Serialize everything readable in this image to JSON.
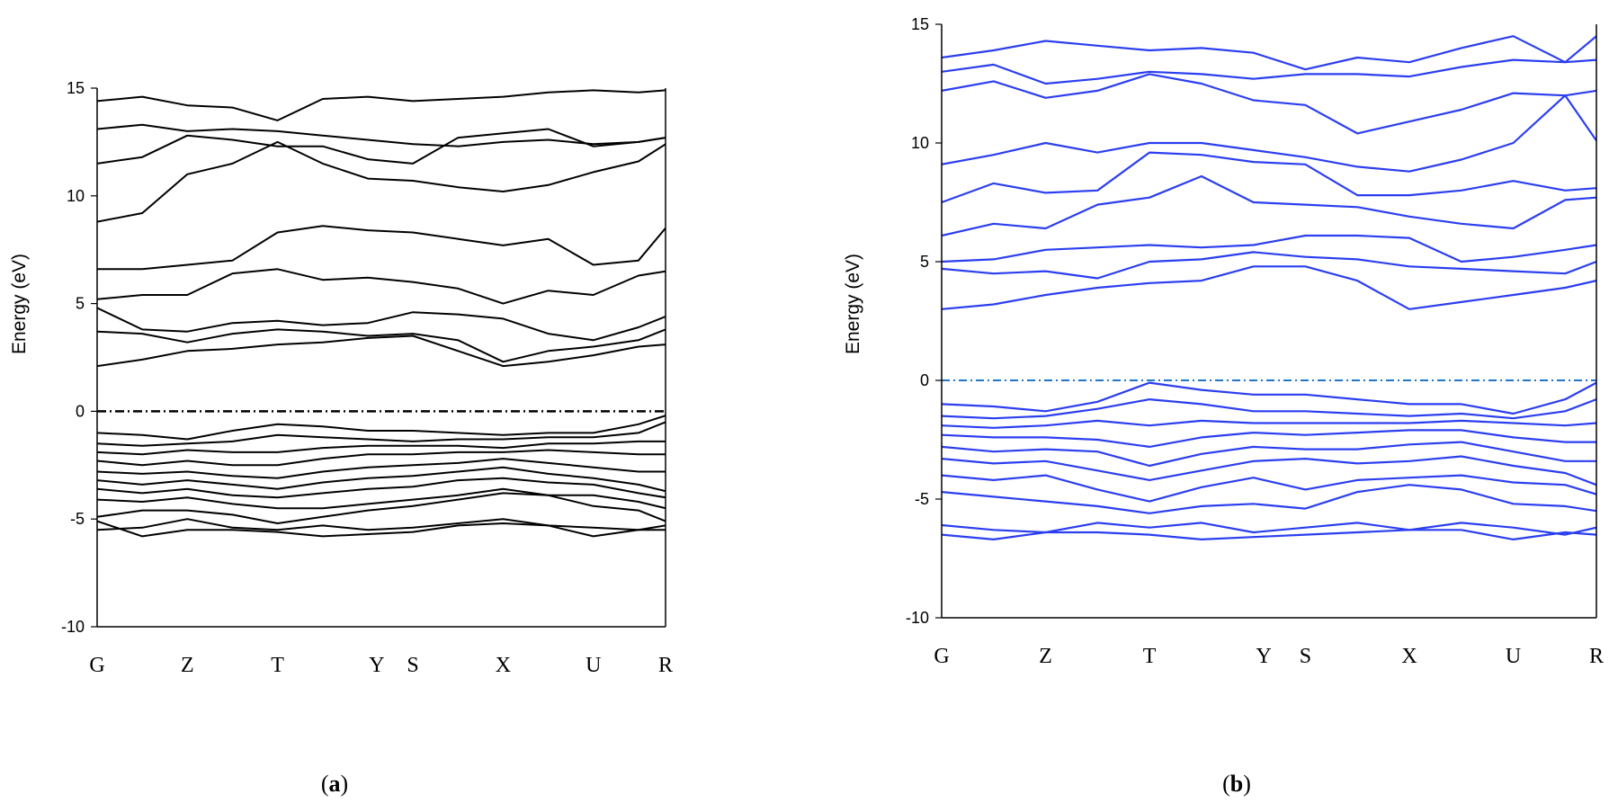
{
  "chart_data": [
    {
      "type": "line",
      "panel": "a",
      "caption_letter": "a",
      "title": "",
      "xlabel": "",
      "ylabel": "Energy (eV)",
      "ylim": [
        -10,
        15
      ],
      "yticks": [
        15,
        10,
        5,
        0,
        -5,
        -10
      ],
      "kpoints": [
        {
          "label": "G",
          "x": 0
        },
        {
          "label": "Z",
          "x": 1
        },
        {
          "label": "T",
          "x": 2
        },
        {
          "label": "Y",
          "x": 3.1
        },
        {
          "label": "S",
          "x": 3.5
        },
        {
          "label": "X",
          "x": 4.5
        },
        {
          "label": "U",
          "x": 5.5
        },
        {
          "label": "R",
          "x": 6.3
        }
      ],
      "x": [
        0,
        0.5,
        1,
        1.5,
        2,
        2.5,
        3,
        3.5,
        4,
        4.5,
        5,
        5.5,
        6,
        6.3
      ],
      "line_color": "#000000",
      "fermi_level": 0,
      "fermi_color": "#000000",
      "grid": false,
      "series": [
        {
          "values": [
            -5.1,
            -5.8,
            -5.5,
            -5.5,
            -5.6,
            -5.8,
            -5.7,
            -5.6,
            -5.3,
            -5.2,
            -5.3,
            -5.8,
            -5.5,
            -5.5
          ]
        },
        {
          "values": [
            -5.5,
            -5.4,
            -5.0,
            -5.4,
            -5.5,
            -5.3,
            -5.5,
            -5.4,
            -5.2,
            -5.0,
            -5.3,
            -5.4,
            -5.5,
            -5.3
          ]
        },
        {
          "values": [
            -4.9,
            -4.6,
            -4.6,
            -4.8,
            -5.2,
            -4.9,
            -4.6,
            -4.4,
            -4.1,
            -3.8,
            -3.9,
            -4.4,
            -4.6,
            -5.1
          ]
        },
        {
          "values": [
            -4.1,
            -4.2,
            -4.0,
            -4.3,
            -4.5,
            -4.5,
            -4.3,
            -4.1,
            -3.9,
            -3.6,
            -3.9,
            -3.9,
            -4.2,
            -4.5
          ]
        },
        {
          "values": [
            -3.6,
            -3.8,
            -3.6,
            -3.9,
            -4.0,
            -3.8,
            -3.6,
            -3.5,
            -3.2,
            -3.1,
            -3.3,
            -3.4,
            -3.8,
            -4.0
          ]
        },
        {
          "values": [
            -3.2,
            -3.4,
            -3.2,
            -3.4,
            -3.6,
            -3.3,
            -3.1,
            -3.0,
            -2.8,
            -2.6,
            -2.9,
            -3.1,
            -3.4,
            -3.7
          ]
        },
        {
          "values": [
            -2.8,
            -2.9,
            -2.8,
            -3.0,
            -3.1,
            -2.8,
            -2.6,
            -2.5,
            -2.4,
            -2.2,
            -2.4,
            -2.6,
            -2.8,
            -2.8
          ]
        },
        {
          "values": [
            -2.3,
            -2.5,
            -2.3,
            -2.5,
            -2.5,
            -2.2,
            -2.0,
            -2.0,
            -1.9,
            -1.9,
            -1.8,
            -1.9,
            -2.0,
            -2.0
          ]
        },
        {
          "values": [
            -1.9,
            -2.0,
            -1.8,
            -1.9,
            -1.9,
            -1.7,
            -1.6,
            -1.6,
            -1.6,
            -1.7,
            -1.5,
            -1.5,
            -1.4,
            -1.4
          ]
        },
        {
          "values": [
            -1.5,
            -1.6,
            -1.5,
            -1.4,
            -1.1,
            -1.2,
            -1.3,
            -1.4,
            -1.3,
            -1.3,
            -1.2,
            -1.2,
            -1.0,
            -0.5
          ]
        },
        {
          "values": [
            -1.0,
            -1.1,
            -1.3,
            -0.9,
            -0.6,
            -0.7,
            -0.9,
            -0.9,
            -1.0,
            -1.1,
            -1.0,
            -1.0,
            -0.6,
            -0.2
          ]
        }
      ],
      "conduction_series": [
        {
          "values": [
            2.1,
            2.4,
            2.8,
            2.9,
            3.1,
            3.2,
            3.4,
            3.5,
            2.8,
            2.1,
            2.3,
            2.6,
            3.0,
            3.1
          ]
        },
        {
          "values": [
            3.7,
            3.6,
            3.2,
            3.6,
            3.8,
            3.7,
            3.5,
            3.6,
            3.3,
            2.3,
            2.8,
            3.0,
            3.3,
            3.8
          ]
        },
        {
          "values": [
            4.8,
            3.8,
            3.7,
            4.1,
            4.2,
            4.0,
            4.1,
            4.6,
            4.5,
            4.3,
            3.6,
            3.3,
            3.9,
            4.4
          ]
        },
        {
          "values": [
            5.2,
            5.4,
            5.4,
            6.4,
            6.6,
            6.1,
            6.2,
            6.0,
            5.7,
            5.0,
            5.6,
            5.4,
            6.3,
            6.5
          ]
        },
        {
          "values": [
            6.6,
            6.6,
            6.8,
            7.0,
            8.3,
            8.6,
            8.4,
            8.3,
            8.0,
            7.7,
            8.0,
            6.8,
            7.0,
            8.5
          ]
        },
        {
          "values": [
            8.8,
            9.2,
            11.0,
            11.5,
            12.5,
            11.5,
            10.8,
            10.7,
            10.4,
            10.2,
            10.5,
            11.1,
            11.6,
            12.4
          ]
        },
        {
          "values": [
            11.5,
            11.8,
            12.8,
            12.6,
            12.3,
            12.3,
            11.7,
            11.5,
            12.7,
            12.9,
            13.1,
            12.3,
            12.5,
            12.7
          ]
        },
        {
          "values": [
            13.1,
            13.3,
            13.0,
            13.1,
            13.0,
            12.8,
            12.6,
            12.4,
            12.3,
            12.5,
            12.6,
            12.4,
            12.5,
            12.7
          ]
        },
        {
          "values": [
            14.4,
            14.6,
            14.2,
            14.1,
            13.5,
            14.5,
            14.6,
            14.4,
            14.5,
            14.6,
            14.8,
            14.9,
            14.8,
            14.9
          ]
        }
      ]
    },
    {
      "type": "line",
      "panel": "b",
      "caption_letter": "b",
      "title": "",
      "xlabel": "",
      "ylabel": "Energy (eV)",
      "ylim": [
        -10,
        15
      ],
      "yticks": [
        15,
        10,
        5,
        0,
        -5,
        -10
      ],
      "kpoints": [
        {
          "label": "G",
          "x": 0
        },
        {
          "label": "Z",
          "x": 1
        },
        {
          "label": "T",
          "x": 2
        },
        {
          "label": "Y",
          "x": 3.1
        },
        {
          "label": "S",
          "x": 3.5
        },
        {
          "label": "X",
          "x": 4.5
        },
        {
          "label": "U",
          "x": 5.5
        },
        {
          "label": "R",
          "x": 6.3
        }
      ],
      "x": [
        0,
        0.5,
        1,
        1.5,
        2,
        2.5,
        3,
        3.5,
        4,
        4.5,
        5,
        5.5,
        6,
        6.3
      ],
      "line_color": "#2b3ef0",
      "fermi_level": 0,
      "fermi_color": "#1f77c8",
      "grid": false,
      "series": [
        {
          "values": [
            -6.5,
            -6.7,
            -6.4,
            -6.4,
            -6.5,
            -6.7,
            -6.6,
            -6.5,
            -6.4,
            -6.3,
            -6.3,
            -6.7,
            -6.4,
            -6.5
          ]
        },
        {
          "values": [
            -6.1,
            -6.3,
            -6.4,
            -6.0,
            -6.2,
            -6.0,
            -6.4,
            -6.2,
            -6.0,
            -6.3,
            -6.0,
            -6.2,
            -6.5,
            -6.2
          ]
        },
        {
          "values": [
            -4.7,
            -4.9,
            -5.1,
            -5.3,
            -5.6,
            -5.3,
            -5.2,
            -5.4,
            -4.7,
            -4.4,
            -4.6,
            -5.2,
            -5.3,
            -5.5
          ]
        },
        {
          "values": [
            -4.0,
            -4.2,
            -4.0,
            -4.6,
            -5.1,
            -4.5,
            -4.1,
            -4.6,
            -4.2,
            -4.1,
            -4.0,
            -4.3,
            -4.4,
            -4.8
          ]
        },
        {
          "values": [
            -3.3,
            -3.5,
            -3.4,
            -3.8,
            -4.2,
            -3.8,
            -3.4,
            -3.3,
            -3.5,
            -3.4,
            -3.2,
            -3.6,
            -3.9,
            -4.4
          ]
        },
        {
          "values": [
            -2.8,
            -3.0,
            -2.9,
            -3.0,
            -3.6,
            -3.1,
            -2.8,
            -2.9,
            -2.9,
            -2.7,
            -2.6,
            -3.0,
            -3.4,
            -3.4
          ]
        },
        {
          "values": [
            -2.3,
            -2.4,
            -2.4,
            -2.5,
            -2.8,
            -2.4,
            -2.2,
            -2.3,
            -2.2,
            -2.1,
            -2.1,
            -2.4,
            -2.6,
            -2.6
          ]
        },
        {
          "values": [
            -1.9,
            -2.0,
            -1.9,
            -1.7,
            -1.9,
            -1.7,
            -1.8,
            -1.8,
            -1.8,
            -1.8,
            -1.7,
            -1.8,
            -1.9,
            -1.8
          ]
        },
        {
          "values": [
            -1.5,
            -1.6,
            -1.5,
            -1.2,
            -0.8,
            -1.0,
            -1.3,
            -1.3,
            -1.4,
            -1.5,
            -1.4,
            -1.6,
            -1.3,
            -0.8
          ]
        },
        {
          "values": [
            -1.0,
            -1.1,
            -1.3,
            -0.9,
            -0.1,
            -0.4,
            -0.6,
            -0.6,
            -0.8,
            -1.0,
            -1.0,
            -1.4,
            -0.8,
            -0.1
          ]
        }
      ],
      "conduction_series": [
        {
          "values": [
            3.0,
            3.2,
            3.6,
            3.9,
            4.1,
            4.2,
            4.8,
            4.8,
            4.2,
            3.0,
            3.3,
            3.6,
            3.9,
            4.2
          ]
        },
        {
          "values": [
            4.7,
            4.5,
            4.6,
            4.3,
            5.0,
            5.1,
            5.4,
            5.2,
            5.1,
            4.8,
            4.7,
            4.6,
            4.5,
            5.0
          ]
        },
        {
          "values": [
            5.0,
            5.1,
            5.5,
            5.6,
            5.7,
            5.6,
            5.7,
            6.1,
            6.1,
            6.0,
            5.0,
            5.2,
            5.5,
            5.7
          ]
        },
        {
          "values": [
            6.1,
            6.6,
            6.4,
            7.4,
            7.7,
            8.6,
            7.5,
            7.4,
            7.3,
            6.9,
            6.6,
            6.4,
            7.6,
            7.7
          ]
        },
        {
          "values": [
            7.5,
            8.3,
            7.9,
            8.0,
            9.6,
            9.5,
            9.2,
            9.1,
            7.8,
            7.8,
            8.0,
            8.4,
            8.0,
            8.1
          ]
        },
        {
          "values": [
            9.1,
            9.5,
            10.0,
            9.6,
            10.0,
            10.0,
            9.7,
            9.4,
            9.0,
            8.8,
            9.3,
            10.0,
            12.0,
            10.1
          ]
        },
        {
          "values": [
            12.2,
            12.6,
            11.9,
            12.2,
            12.9,
            12.5,
            11.8,
            11.6,
            10.4,
            10.9,
            11.4,
            12.1,
            12.0,
            12.2
          ]
        },
        {
          "values": [
            13.0,
            13.3,
            12.5,
            12.7,
            13.0,
            12.9,
            12.7,
            12.9,
            12.9,
            12.8,
            13.2,
            13.5,
            13.4,
            13.5
          ]
        },
        {
          "values": [
            13.6,
            13.9,
            14.3,
            14.1,
            13.9,
            14.0,
            13.8,
            13.1,
            13.6,
            13.4,
            14.0,
            14.5,
            13.4,
            14.5
          ]
        }
      ]
    }
  ]
}
